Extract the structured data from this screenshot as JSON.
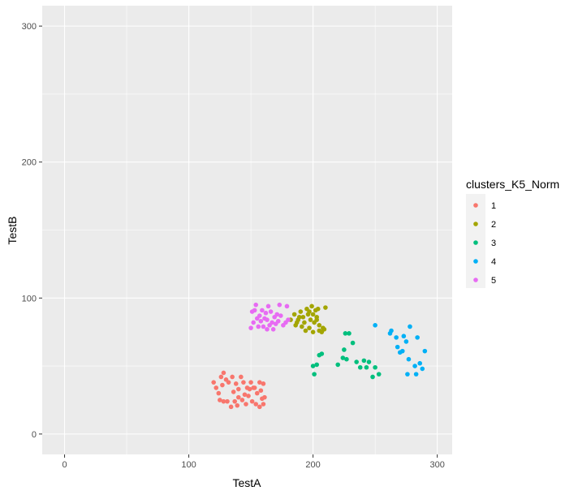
{
  "chart_data": {
    "type": "scatter",
    "xlabel": "TestA",
    "ylabel": "TestB",
    "xlim": [
      -18,
      312
    ],
    "ylim": [
      -15,
      315
    ],
    "x_ticks": [
      0,
      100,
      200,
      300
    ],
    "y_ticks": [
      0,
      100,
      200,
      300
    ],
    "x_tick_labels": [
      "0",
      "100",
      "200",
      "300"
    ],
    "y_tick_labels": [
      "0",
      "100",
      "200",
      "300"
    ],
    "grid": true,
    "background": "#EBEBEB",
    "legend": {
      "title": "clusters_K5_Norm",
      "position": "right"
    },
    "series": [
      {
        "name": "1",
        "color": "#F8766D",
        "points": [
          [
            120,
            38
          ],
          [
            122,
            34
          ],
          [
            124,
            30
          ],
          [
            126,
            42
          ],
          [
            128,
            45
          ],
          [
            130,
            40
          ],
          [
            127,
            36
          ],
          [
            132,
            38
          ],
          [
            135,
            42
          ],
          [
            138,
            37
          ],
          [
            140,
            33
          ],
          [
            142,
            42
          ],
          [
            144,
            38
          ],
          [
            147,
            34
          ],
          [
            150,
            38
          ],
          [
            152,
            34
          ],
          [
            155,
            30
          ],
          [
            157,
            38
          ],
          [
            160,
            37
          ],
          [
            158,
            32
          ],
          [
            125,
            25
          ],
          [
            128,
            24
          ],
          [
            131,
            24
          ],
          [
            134,
            20
          ],
          [
            137,
            24
          ],
          [
            140,
            27
          ],
          [
            143,
            25
          ],
          [
            146,
            22
          ],
          [
            148,
            28
          ],
          [
            151,
            24
          ],
          [
            154,
            22
          ],
          [
            157,
            20
          ],
          [
            159,
            26
          ],
          [
            160,
            22
          ],
          [
            161,
            27
          ],
          [
            145,
            29
          ],
          [
            149,
            33
          ],
          [
            136,
            31
          ],
          [
            153,
            34
          ],
          [
            139,
            21
          ]
        ]
      },
      {
        "name": "2",
        "color": "#A3A500",
        "points": [
          [
            182,
            84
          ],
          [
            185,
            88
          ],
          [
            186,
            80
          ],
          [
            188,
            84
          ],
          [
            190,
            90
          ],
          [
            192,
            86
          ],
          [
            193,
            82
          ],
          [
            195,
            92
          ],
          [
            196,
            88
          ],
          [
            197,
            78
          ],
          [
            198,
            84
          ],
          [
            199,
            94
          ],
          [
            200,
            88
          ],
          [
            201,
            82
          ],
          [
            203,
            86
          ],
          [
            205,
            80
          ],
          [
            205,
            76
          ],
          [
            207,
            75
          ],
          [
            208,
            78
          ],
          [
            209,
            77
          ],
          [
            210,
            93
          ],
          [
            189,
            86
          ],
          [
            194,
            76
          ],
          [
            200,
            75
          ],
          [
            203,
            84
          ],
          [
            191,
            79
          ],
          [
            197,
            90
          ],
          [
            202,
            91
          ],
          [
            204,
            92
          ],
          [
            187,
            82
          ]
        ]
      },
      {
        "name": "3",
        "color": "#00BF7D",
        "points": [
          [
            200,
            50
          ],
          [
            201,
            44
          ],
          [
            203,
            51
          ],
          [
            205,
            58
          ],
          [
            207,
            59
          ],
          [
            220,
            51
          ],
          [
            224,
            56
          ],
          [
            225,
            62
          ],
          [
            226,
            74
          ],
          [
            229,
            74
          ],
          [
            232,
            67
          ],
          [
            235,
            53
          ],
          [
            238,
            49
          ],
          [
            241,
            54
          ],
          [
            243,
            49
          ],
          [
            245,
            53
          ],
          [
            248,
            42
          ],
          [
            250,
            49
          ],
          [
            253,
            44
          ],
          [
            227,
            55
          ]
        ]
      },
      {
        "name": "4",
        "color": "#00B0F6",
        "points": [
          [
            250,
            80
          ],
          [
            262,
            74
          ],
          [
            263,
            76
          ],
          [
            267,
            71
          ],
          [
            268,
            64
          ],
          [
            270,
            60
          ],
          [
            273,
            72
          ],
          [
            275,
            68
          ],
          [
            276,
            44
          ],
          [
            277,
            55
          ],
          [
            278,
            79
          ],
          [
            282,
            50
          ],
          [
            283,
            44
          ],
          [
            284,
            71
          ],
          [
            286,
            52
          ],
          [
            288,
            48
          ],
          [
            290,
            61
          ],
          [
            272,
            61
          ]
        ]
      },
      {
        "name": "5",
        "color": "#E76BF3",
        "points": [
          [
            150,
            78
          ],
          [
            151,
            90
          ],
          [
            152,
            82
          ],
          [
            153,
            91
          ],
          [
            154,
            95
          ],
          [
            156,
            79
          ],
          [
            157,
            87
          ],
          [
            158,
            83
          ],
          [
            159,
            91
          ],
          [
            160,
            79
          ],
          [
            161,
            85
          ],
          [
            162,
            89
          ],
          [
            163,
            77
          ],
          [
            164,
            94
          ],
          [
            165,
            80
          ],
          [
            166,
            90
          ],
          [
            167,
            82
          ],
          [
            168,
            77
          ],
          [
            169,
            86
          ],
          [
            170,
            81
          ],
          [
            171,
            88
          ],
          [
            172,
            83
          ],
          [
            173,
            95
          ],
          [
            174,
            87
          ],
          [
            176,
            80
          ],
          [
            178,
            82
          ],
          [
            179,
            94
          ],
          [
            180,
            84
          ],
          [
            155,
            85
          ],
          [
            163,
            84
          ]
        ]
      }
    ]
  }
}
